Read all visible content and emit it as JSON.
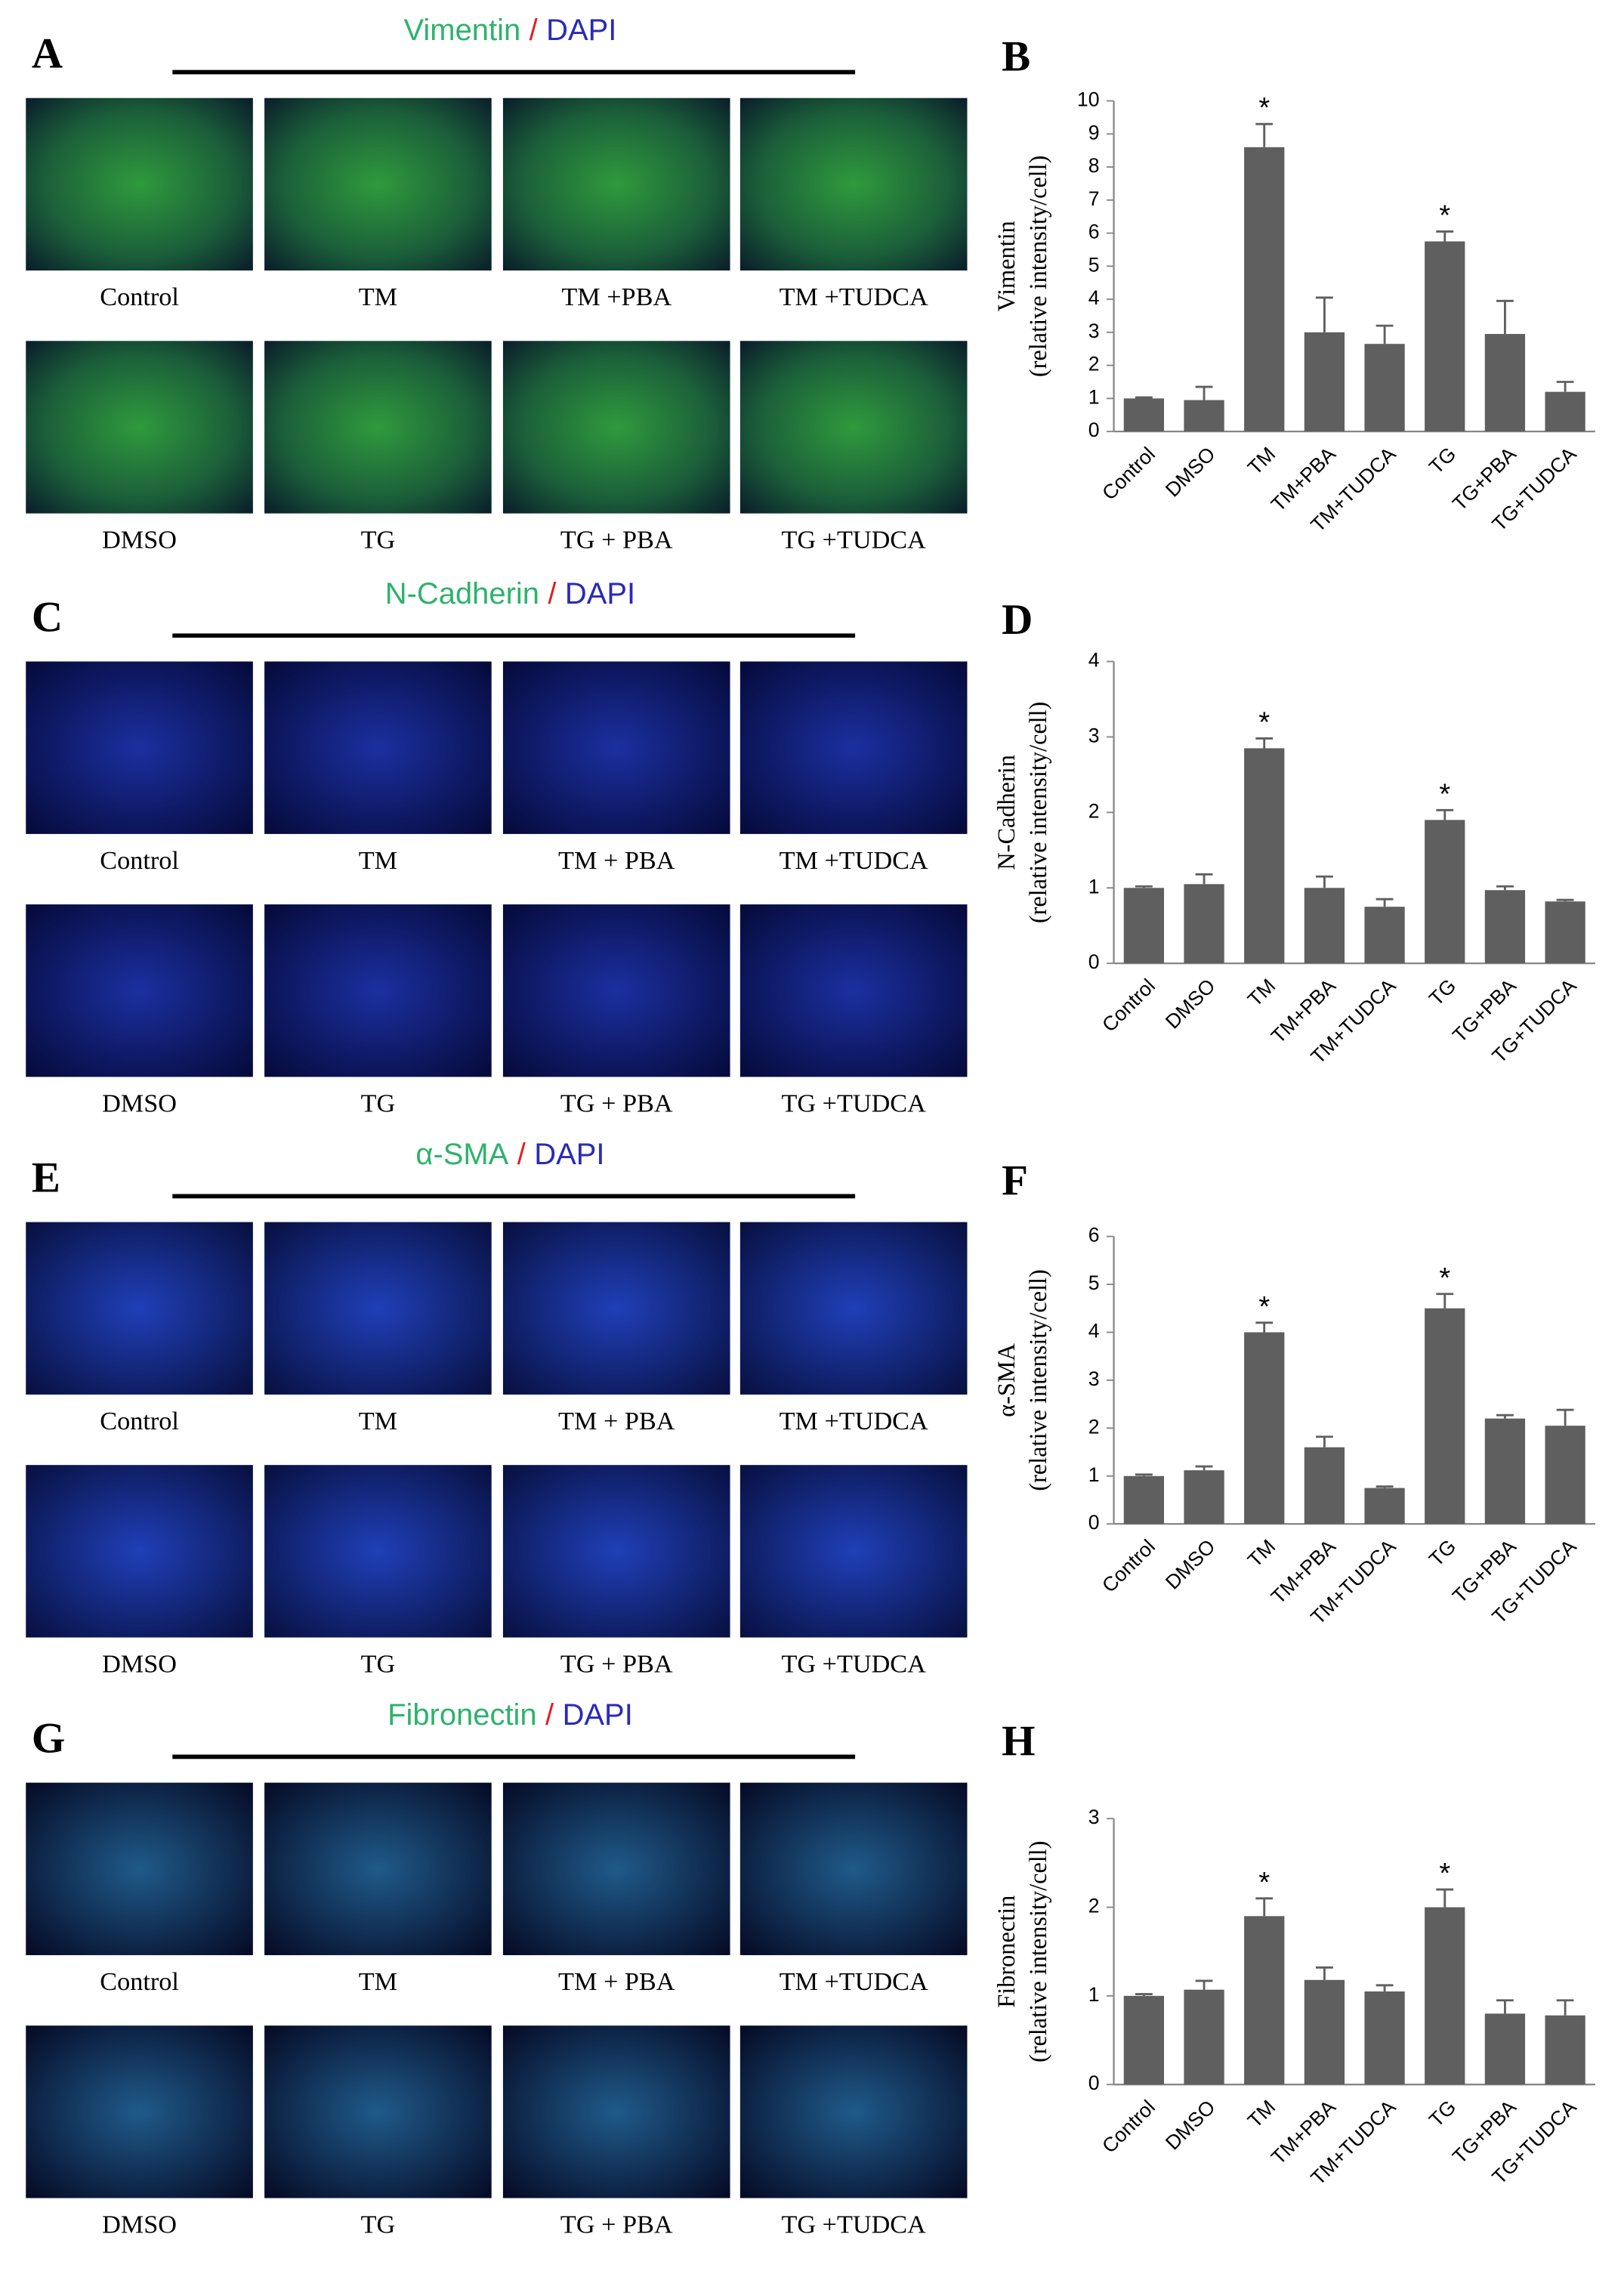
{
  "panels": [
    {
      "letter": "A",
      "stain": "Vimentin",
      "sep": "/",
      "counter": "DAPI",
      "labels": [
        "Control",
        "TM",
        "TM +PBA",
        "TM +TUDCA",
        "DMSO",
        "TG",
        "TG + PBA",
        "TG +TUDCA"
      ]
    },
    {
      "letter": "C",
      "stain": "N-Cadherin",
      "sep": "/",
      "counter": "DAPI",
      "labels": [
        "Control",
        "TM",
        "TM + PBA",
        "TM +TUDCA",
        "DMSO",
        "TG",
        "TG + PBA",
        "TG +TUDCA"
      ]
    },
    {
      "letter": "E",
      "stain": "α-SMA",
      "sep": "/",
      "counter": "DAPI",
      "labels": [
        "Control",
        "TM",
        "TM + PBA",
        "TM +TUDCA",
        "DMSO",
        "TG",
        "TG + PBA",
        "TG +TUDCA"
      ]
    },
    {
      "letter": "G",
      "stain": "Fibronectin",
      "sep": "/",
      "counter": "DAPI",
      "labels": [
        "Control",
        "TM",
        "TM + PBA",
        "TM +TUDCA",
        "DMSO",
        "TG",
        "TG + PBA",
        "TG +TUDCA"
      ]
    }
  ],
  "chart_data": [
    {
      "type": "bar",
      "panel_label": "B",
      "y_label": [
        "Vimentin",
        "(relative intensity/cell)"
      ],
      "color": "#5f5f5f",
      "categories": [
        "Control",
        "DMSO",
        "TM",
        "TM+PBA",
        "TM+TUDCA",
        "TG",
        "TG+PBA",
        "TG+TUDCA"
      ],
      "values": [
        1.0,
        0.95,
        8.6,
        3.0,
        2.65,
        5.75,
        2.95,
        1.2
      ],
      "errors": [
        0.03,
        0.4,
        0.7,
        1.05,
        0.55,
        0.3,
        1.0,
        0.3
      ],
      "annotations": [
        {
          "category": "TM",
          "text": "*"
        },
        {
          "category": "TG",
          "text": "*"
        }
      ],
      "ylim": [
        0,
        10
      ],
      "yticks": [
        0,
        1,
        2,
        3,
        4,
        5,
        6,
        7,
        8,
        9,
        10
      ]
    },
    {
      "type": "bar",
      "panel_label": "D",
      "y_label": [
        "N-Cadherin",
        "(relative intensity/cell)"
      ],
      "color": "#5f5f5f",
      "categories": [
        "Control",
        "DMSO",
        "TM",
        "TM+PBA",
        "TM+TUDCA",
        "TG",
        "TG+PBA",
        "TG+TUDCA"
      ],
      "values": [
        1.0,
        1.05,
        2.85,
        1.0,
        0.75,
        1.9,
        0.97,
        0.82
      ],
      "errors": [
        0.02,
        0.13,
        0.13,
        0.15,
        0.1,
        0.13,
        0.05,
        0.02
      ],
      "annotations": [
        {
          "category": "TM",
          "text": "*"
        },
        {
          "category": "TG",
          "text": "*"
        }
      ],
      "ylim": [
        0,
        4
      ],
      "yticks": [
        0,
        1,
        2,
        3,
        4
      ]
    },
    {
      "type": "bar",
      "panel_label": "F",
      "y_label": [
        "α-SMA",
        "(relative intensity/cell)"
      ],
      "color": "#5f5f5f",
      "categories": [
        "Control",
        "DMSO",
        "TM",
        "TM+PBA",
        "TM+TUDCA",
        "TG",
        "TG+PBA",
        "TG+TUDCA"
      ],
      "values": [
        1.0,
        1.12,
        4.0,
        1.6,
        0.75,
        4.5,
        2.2,
        2.05
      ],
      "errors": [
        0.03,
        0.08,
        0.2,
        0.22,
        0.03,
        0.3,
        0.07,
        0.33
      ],
      "annotations": [
        {
          "category": "TM",
          "text": "*"
        },
        {
          "category": "TG",
          "text": "*"
        }
      ],
      "ylim": [
        0,
        6
      ],
      "yticks": [
        0,
        1,
        2,
        3,
        4,
        5,
        6
      ]
    },
    {
      "type": "bar",
      "panel_label": "H",
      "y_label": [
        "Fibronectin",
        "(relative intensity/cell)"
      ],
      "color": "#5f5f5f",
      "categories": [
        "Control",
        "DMSO",
        "TM",
        "TM+PBA",
        "TM+TUDCA",
        "TG",
        "TG+PBA",
        "TG+TUDCA"
      ],
      "values": [
        1.0,
        1.07,
        1.9,
        1.18,
        1.05,
        2.0,
        0.8,
        0.78
      ],
      "errors": [
        0.02,
        0.1,
        0.2,
        0.14,
        0.07,
        0.2,
        0.15,
        0.17
      ],
      "annotations": [
        {
          "category": "TM",
          "text": "*"
        },
        {
          "category": "TG",
          "text": "*"
        }
      ],
      "ylim": [
        0,
        3
      ],
      "yticks": [
        0,
        1,
        2,
        3
      ]
    }
  ]
}
